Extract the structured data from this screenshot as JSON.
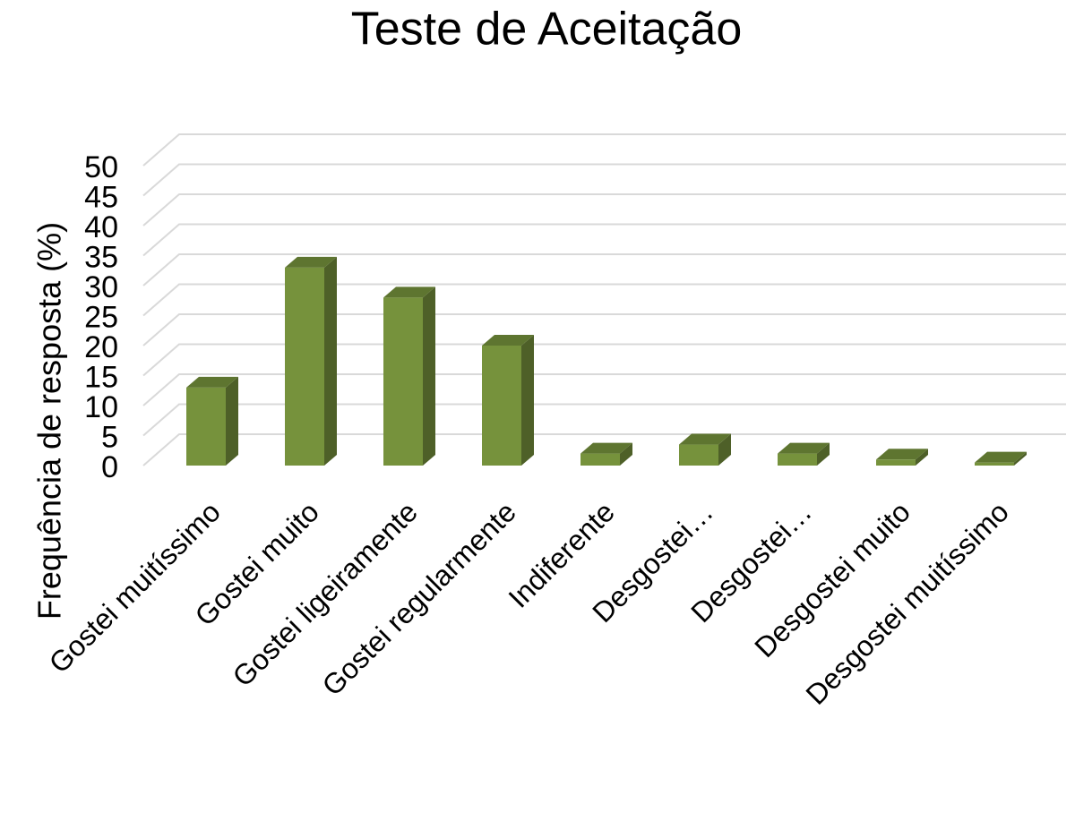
{
  "chart_data": {
    "type": "bar3d",
    "title": "Teste de Aceitação",
    "y_label": "Frequência de resposta (%)",
    "categories": [
      "Gostei muitíssimo",
      "Gostei muito",
      "Gostei ligeiramente",
      "Gostei regularmente",
      "Indiferente",
      "Desgostei…",
      "Desgostei…",
      "Desgostei muito",
      "Desgostei muitíssimo"
    ],
    "values": [
      13,
      33,
      28,
      20,
      2,
      3.5,
      2,
      1,
      0.5
    ],
    "color": "#76923c",
    "ylim": [
      0,
      50
    ],
    "yticks": [
      0,
      5,
      10,
      15,
      20,
      25,
      30,
      35,
      40,
      45,
      50
    ],
    "grid": true
  }
}
